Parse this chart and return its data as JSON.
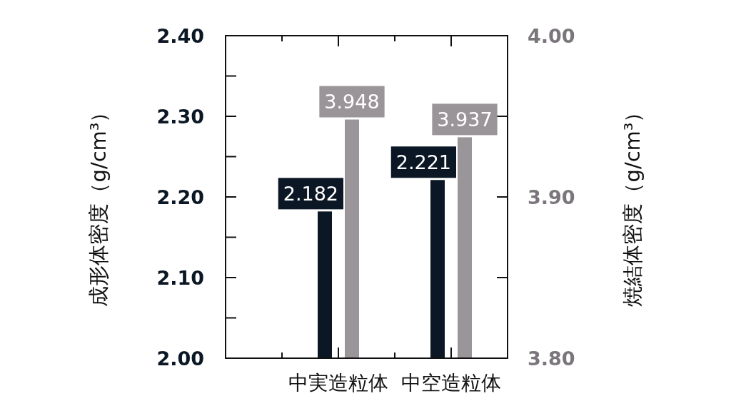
{
  "chart_data": {
    "type": "bar",
    "categories": [
      "中実造粒体",
      "中空造粒体"
    ],
    "series": [
      {
        "color": "#0b1724",
        "values": [
          2.182,
          2.221
        ]
      },
      {
        "color": "#9a9599",
        "values": [
          3.948,
          3.937
        ],
        "axis": "y2"
      }
    ],
    "ylabel": "成形体密度（g/cm³）",
    "y2label": "焼結体密度（g/cm³）",
    "ylim": [
      2,
      2.4
    ],
    "yticks": [
      {
        "value": 2,
        "label": "2.00"
      },
      {
        "value": 2.05,
        "label": null
      },
      {
        "value": 2.1,
        "label": "2.10"
      },
      {
        "value": 2.15,
        "label": null
      },
      {
        "value": 2.2,
        "label": "2.20"
      },
      {
        "value": 2.25,
        "label": null
      },
      {
        "value": 2.3,
        "label": "2.30"
      },
      {
        "value": 2.35,
        "label": null
      },
      {
        "value": 2.4,
        "label": "2.40"
      }
    ],
    "y2lim": [
      3.8,
      4
    ],
    "y2ticks": [
      {
        "value": 3.8,
        "label": "3.80"
      },
      {
        "value": 3.85,
        "label": null
      },
      {
        "value": 3.9,
        "label": "3.90"
      },
      {
        "value": 3.95,
        "label": null
      },
      {
        "value": 4,
        "label": "4.00"
      }
    ],
    "data_labels": true
  }
}
